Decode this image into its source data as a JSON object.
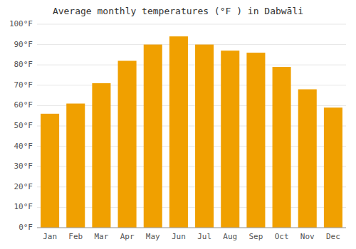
{
  "chart_data": {
    "type": "bar",
    "title": "Average monthly temperatures (°F ) in Dabwāli",
    "categories": [
      "Jan",
      "Feb",
      "Mar",
      "Apr",
      "May",
      "Jun",
      "Jul",
      "Aug",
      "Sep",
      "Oct",
      "Nov",
      "Dec"
    ],
    "values": [
      56,
      61,
      71,
      82,
      90,
      94,
      90,
      87,
      86,
      79,
      68,
      59
    ],
    "color": "#F0A000",
    "ylim": [
      0,
      100
    ],
    "yticks": [
      {
        "value": 0,
        "label": "0°F"
      },
      {
        "value": 10,
        "label": "10°F"
      },
      {
        "value": 20,
        "label": "20°F"
      },
      {
        "value": 30,
        "label": "30°F"
      },
      {
        "value": 40,
        "label": "40°F"
      },
      {
        "value": 50,
        "label": "50°F"
      },
      {
        "value": 60,
        "label": "60°F"
      },
      {
        "value": 70,
        "label": "70°F"
      },
      {
        "value": 80,
        "label": "80°F"
      },
      {
        "value": 90,
        "label": "90°F"
      },
      {
        "value": 100,
        "label": "100°F"
      }
    ],
    "grid": true
  }
}
